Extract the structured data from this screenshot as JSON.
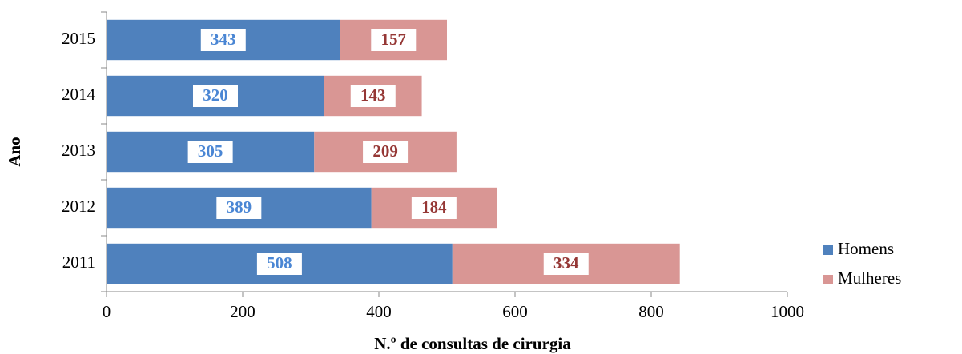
{
  "chart_data": {
    "type": "stacked-barh",
    "xlabel": "N.º de consultas de cirurgia",
    "ylabel": "Ano",
    "categories": [
      "2015",
      "2014",
      "2013",
      "2012",
      "2011"
    ],
    "series": [
      {
        "name": "Homens",
        "color": "#4f81bd",
        "label_color": "#4a86d4",
        "values": [
          343,
          320,
          305,
          389,
          508
        ]
      },
      {
        "name": "Mulheres",
        "color": "#d99694",
        "label_color": "#953735",
        "values": [
          157,
          143,
          209,
          184,
          334
        ]
      }
    ],
    "xlim": [
      0,
      1000
    ],
    "xticks": [
      0,
      200,
      400,
      600,
      800,
      1000
    ],
    "legend": "right"
  }
}
